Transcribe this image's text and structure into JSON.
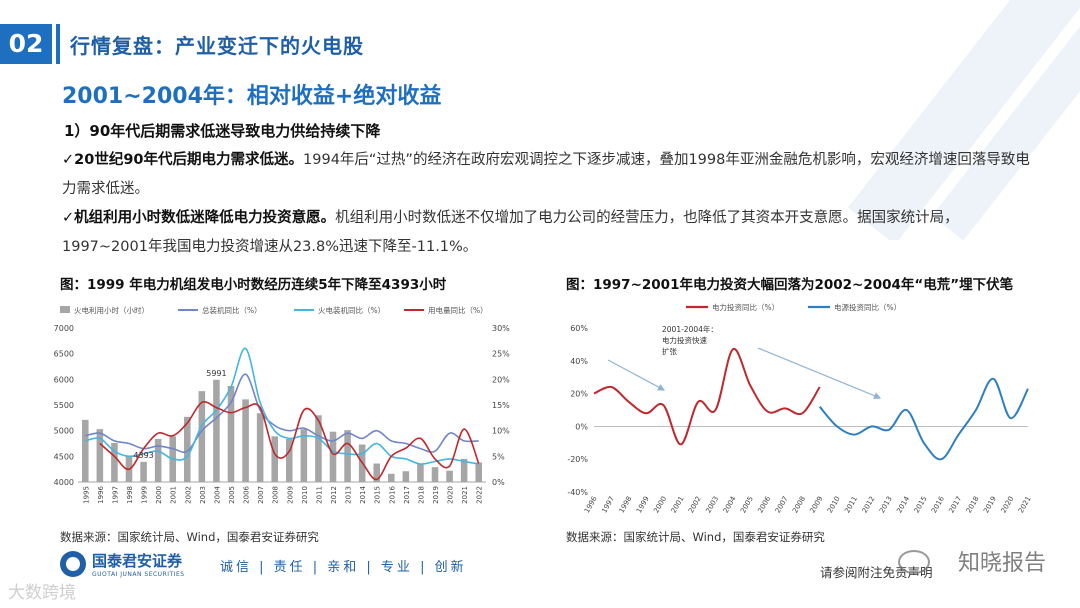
{
  "section": {
    "number": "02",
    "title": "行情复盘：产业变迁下的火电股"
  },
  "subtitle": "2001~2004年：相对收益+绝对收益",
  "point_title": "1）90年代后期需求低迷导致电力供给持续下降",
  "paragraphs": [
    {
      "bold": "✓20世纪90年代后期电力需求低迷。",
      "text": "1994年后“过热”的经济在政府宏观调控之下逐步减速，叠加1998年亚洲金融危机影响，宏观经济增速回落导致电力需求低迷。"
    },
    {
      "bold": "✓机组利用小时数低迷降低电力投资意愿。",
      "text": "机组利用小时数低迷不仅增加了电力公司的经营压力，也降低了其资本开支意愿。据国家统计局，1997~2001年我国电力投资增速从23.8%迅速下降至-11.1%。"
    }
  ],
  "chart_data": [
    {
      "type": "bar",
      "title": "图：1999 年电力机组发电小时数经历连续5年下降至4393小时",
      "categories": [
        "1995",
        "1996",
        "1997",
        "1998",
        "1999",
        "2000",
        "2001",
        "2002",
        "2003",
        "2004",
        "2005",
        "2006",
        "2007",
        "2008",
        "2009",
        "2010",
        "2011",
        "2012",
        "2013",
        "2014",
        "2015",
        "2016",
        "2017",
        "2018",
        "2019",
        "2020",
        "2021",
        "2022"
      ],
      "series": [
        {
          "name": "火电利用小时（小时）",
          "kind": "bar",
          "axis": "left",
          "color": "#a6a6a6",
          "values": [
            5210,
            5030,
            4760,
            4500,
            4393,
            4840,
            4890,
            5270,
            5770,
            5991,
            5870,
            5610,
            5340,
            4890,
            4840,
            5030,
            5300,
            4980,
            5010,
            4730,
            4360,
            4160,
            4210,
            4360,
            4290,
            4220,
            4450,
            4380
          ]
        },
        {
          "name": "总装机同比（%）",
          "kind": "line",
          "axis": "right",
          "color": "#6f86c8",
          "values": [
            9.0,
            9.5,
            8.0,
            7.5,
            6.5,
            7.0,
            6.5,
            6.0,
            10.0,
            12.5,
            15.5,
            21.0,
            14.0,
            11.0,
            10.0,
            10.5,
            9.0,
            8.0,
            9.5,
            8.5,
            10.0,
            8.0,
            7.5,
            6.5,
            6.0,
            9.5,
            8.0,
            8.0
          ]
        },
        {
          "name": "火电装机同比（%）",
          "kind": "line",
          "axis": "right",
          "color": "#43b6df",
          "values": [
            8.0,
            8.5,
            6.0,
            5.0,
            5.5,
            6.0,
            4.5,
            5.0,
            11.0,
            14.0,
            18.5,
            26.0,
            15.5,
            10.0,
            8.5,
            9.0,
            8.5,
            6.0,
            5.5,
            5.5,
            7.5,
            5.0,
            4.5,
            3.5,
            4.0,
            4.5,
            4.0,
            3.5
          ]
        },
        {
          "name": "用电量同比（%）",
          "kind": "line",
          "axis": "right",
          "color": "#c0282d",
          "values": [
            null,
            7.5,
            5.0,
            2.5,
            6.5,
            9.5,
            9.0,
            11.5,
            15.5,
            14.5,
            13.5,
            14.5,
            14.5,
            5.5,
            6.0,
            14.0,
            12.0,
            5.5,
            7.5,
            3.8,
            0.5,
            5.0,
            6.6,
            8.5,
            4.5,
            3.1,
            10.3,
            3.6
          ]
        }
      ],
      "data_labels": [
        {
          "category": "2004",
          "text": "5991"
        },
        {
          "category": "1999",
          "text": "4393"
        }
      ],
      "yleft_ticks": [
        "4000",
        "4500",
        "5000",
        "5500",
        "6000",
        "6500",
        "7000"
      ],
      "yright_ticks": [
        "0%",
        "5%",
        "10%",
        "15%",
        "20%",
        "25%",
        "30%"
      ],
      "ylim_left": [
        4000,
        7000
      ],
      "ylim_right": [
        0,
        30
      ],
      "legend": "top",
      "colors": {
        "bar": "#a6a6a6"
      }
    },
    {
      "type": "line",
      "title": "图：1997~2001年电力投资大幅回落为2002~2004年“电荒”埋下伏笔",
      "categories": [
        "1996",
        "1997",
        "1998",
        "1999",
        "2000",
        "2001",
        "2002",
        "2003",
        "2004",
        "2005",
        "2006",
        "2007",
        "2008",
        "2009",
        "2010",
        "2011",
        "2012",
        "2013",
        "2014",
        "2015",
        "2016",
        "2017",
        "2018",
        "2019",
        "2020",
        "2021"
      ],
      "series": [
        {
          "name": "电力投资同比（%）",
          "color": "#c0282d",
          "values": [
            20,
            24,
            15,
            8,
            13,
            -11,
            15,
            10,
            47,
            25,
            9,
            11,
            8,
            24,
            null,
            null,
            null,
            null,
            null,
            null,
            null,
            null,
            null,
            null,
            null,
            null
          ]
        },
        {
          "name": "电源投资同比（%）",
          "color": "#2e7fc0",
          "values": [
            null,
            null,
            null,
            null,
            null,
            null,
            null,
            null,
            null,
            null,
            null,
            null,
            null,
            12,
            0,
            -5,
            0,
            -2,
            10,
            -10,
            -20,
            -5,
            10,
            29,
            5,
            23
          ]
        }
      ],
      "annotation": "2001-2004年：电力投资快速扩张",
      "y_ticks": [
        "60%",
        "40%",
        "20%",
        "0%",
        "-20%",
        "-40%"
      ],
      "ylim": [
        -40,
        60
      ],
      "legend": "top"
    }
  ],
  "sources": [
    "数据来源：国家统计局、Wind，国泰君安证券研究",
    "数据来源：国家统计局、Wind，国泰君安证券研究"
  ],
  "footer": {
    "logo_cn": "国泰君安证券",
    "logo_en": "GUOTAI JUNAN SECURITIES",
    "slogan": "诚信 | 责任 | 亲和 | 专业 | 创新",
    "disclaimer": "请参阅附注免责声明",
    "watermark_right": "知晓报告",
    "watermark_left": "大数跨境"
  }
}
